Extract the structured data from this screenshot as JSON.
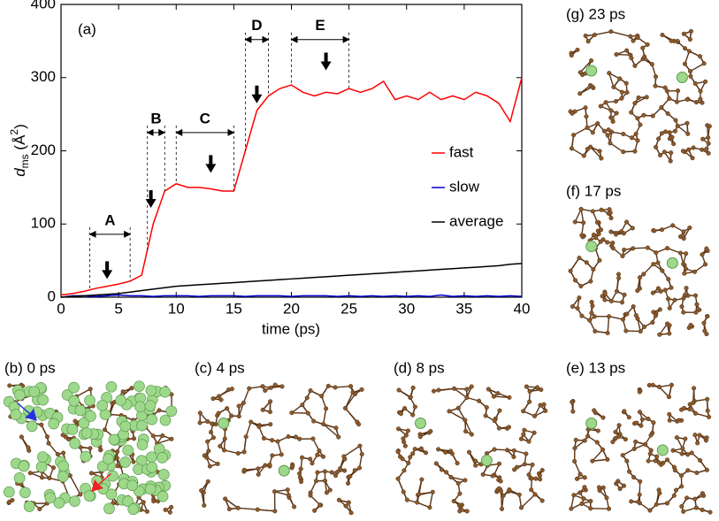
{
  "chart_data": {
    "type": "line",
    "panel_label": "(a)",
    "xlabel": "time (ps)",
    "ylabel_parts": [
      "d",
      "ms",
      " (Å",
      "2",
      ")"
    ],
    "x": [
      0,
      1,
      2,
      3,
      4,
      5,
      6,
      7,
      8,
      9,
      10,
      11,
      12,
      13,
      14,
      15,
      16,
      17,
      18,
      19,
      20,
      21,
      22,
      23,
      24,
      25,
      26,
      27,
      28,
      29,
      30,
      31,
      32,
      33,
      34,
      35,
      36,
      37,
      38,
      39,
      40
    ],
    "series": [
      {
        "name": "fast",
        "color": "#ff0000",
        "values": [
          3,
          5,
          8,
          12,
          15,
          18,
          22,
          30,
          100,
          145,
          155,
          150,
          150,
          148,
          145,
          145,
          200,
          255,
          275,
          285,
          290,
          280,
          275,
          280,
          278,
          285,
          280,
          285,
          295,
          270,
          275,
          270,
          280,
          270,
          275,
          270,
          280,
          275,
          265,
          240,
          300
        ]
      },
      {
        "name": "slow",
        "color": "#0000cc",
        "values": [
          0,
          2,
          2,
          1,
          2,
          3,
          2,
          2,
          1,
          2,
          2,
          2,
          1,
          2,
          2,
          2,
          1,
          2,
          2,
          2,
          1,
          2,
          2,
          2,
          1,
          2,
          1,
          2,
          1,
          2,
          1,
          2,
          1,
          3,
          1,
          2,
          1,
          2,
          1,
          2,
          1
        ]
      },
      {
        "name": "average",
        "color": "#000000",
        "values": [
          0,
          1,
          2,
          3,
          4,
          5,
          7,
          9,
          11,
          13,
          15,
          16,
          17,
          18,
          19,
          20,
          21,
          22,
          23,
          24,
          25,
          26,
          27,
          28,
          29,
          30,
          31,
          32,
          33,
          34,
          35,
          36,
          37,
          38,
          39,
          40,
          41,
          42,
          43,
          45,
          46
        ]
      }
    ],
    "xlim": [
      0,
      40
    ],
    "xticks": [
      0,
      5,
      10,
      15,
      20,
      25,
      30,
      35,
      40
    ],
    "ylim": [
      0,
      400
    ],
    "yticks": [
      0,
      100,
      200,
      300,
      400
    ],
    "annotations": [
      {
        "label": "A",
        "x": [
          2.5,
          6
        ],
        "y": 86,
        "arrow": [
          4,
          25
        ]
      },
      {
        "label": "B",
        "x": [
          7.5,
          9
        ],
        "y": 225,
        "arrow": [
          7.8,
          122
        ]
      },
      {
        "label": "C",
        "x": [
          10,
          15
        ],
        "y": 225,
        "arrow": [
          13,
          170
        ]
      },
      {
        "label": "D",
        "x": [
          16,
          18
        ],
        "y": 352,
        "arrow": [
          17,
          265
        ]
      },
      {
        "label": "E",
        "x": [
          20,
          25
        ],
        "y": 352,
        "arrow": [
          23,
          310
        ]
      }
    ]
  },
  "panels": [
    "(b) 0 ps",
    "(c) 4 ps",
    "(d) 8 ps",
    "(e) 13 ps",
    "(f)  17 ps",
    "(g) 23 ps"
  ]
}
